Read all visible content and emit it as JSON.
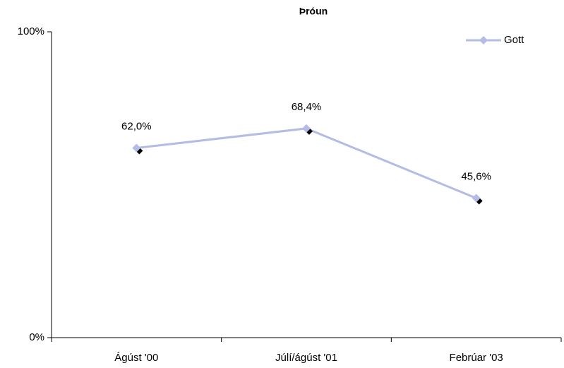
{
  "chart_data": {
    "type": "line",
    "title": "Þróun",
    "categories": [
      "Ágúst '00",
      "Júlí/ágúst '01",
      "Febrúar '03"
    ],
    "series": [
      {
        "name": "Gott",
        "color": "#b4bce6",
        "values": [
          62.0,
          68.4,
          45.6
        ],
        "value_labels": [
          "62,0%",
          "68,4%",
          "45,6%"
        ]
      }
    ],
    "ylim": [
      0,
      100
    ],
    "yticks": [
      {
        "value": 0,
        "label": "0%"
      },
      {
        "value": 100,
        "label": "100%"
      }
    ],
    "legend": "upper right"
  }
}
